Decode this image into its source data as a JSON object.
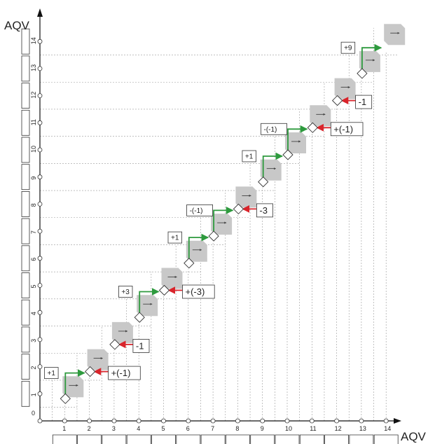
{
  "axes": {
    "x_label": "AQV",
    "y_label": "AQV",
    "origin_label": "0",
    "x_ticks": [
      "1",
      "2",
      "3",
      "4",
      "5",
      "6",
      "7",
      "8",
      "9",
      "10",
      "11",
      "12",
      "13",
      "14"
    ],
    "y_ticks": [
      "1",
      "2",
      "3",
      "4",
      "5",
      "6",
      "7",
      "8",
      "9",
      "10",
      "11",
      "12",
      "13",
      "14"
    ]
  },
  "colors": {
    "green": "#2e9a3e",
    "red": "#d9242b",
    "gray": "#c8c8c8",
    "grid": "#9a9a9a"
  },
  "steps": [
    {
      "x": 1,
      "y": 1,
      "label": "+1",
      "kind": "green"
    },
    {
      "x": 2,
      "y": 2,
      "label": "+(-1)",
      "kind": "red"
    },
    {
      "x": 3,
      "y": 3,
      "label": "-1",
      "kind": "red"
    },
    {
      "x": 4,
      "y": 4,
      "label": "+3",
      "kind": "green"
    },
    {
      "x": 5,
      "y": 5,
      "label": "+(-3)",
      "kind": "red"
    },
    {
      "x": 6,
      "y": 6,
      "label": "+1",
      "kind": "green"
    },
    {
      "x": 7,
      "y": 7,
      "label": "-(-1)",
      "kind": "green"
    },
    {
      "x": 8,
      "y": 8,
      "label": "-3",
      "kind": "red"
    },
    {
      "x": 9,
      "y": 9,
      "label": "+1",
      "kind": "green"
    },
    {
      "x": 10,
      "y": 10,
      "label": "-(-1)",
      "kind": "green"
    },
    {
      "x": 11,
      "y": 11,
      "label": "+(-1)",
      "kind": "red"
    },
    {
      "x": 12,
      "y": 12,
      "label": "-1",
      "kind": "red"
    },
    {
      "x": 13,
      "y": 13,
      "label": "+9",
      "kind": "green"
    }
  ]
}
